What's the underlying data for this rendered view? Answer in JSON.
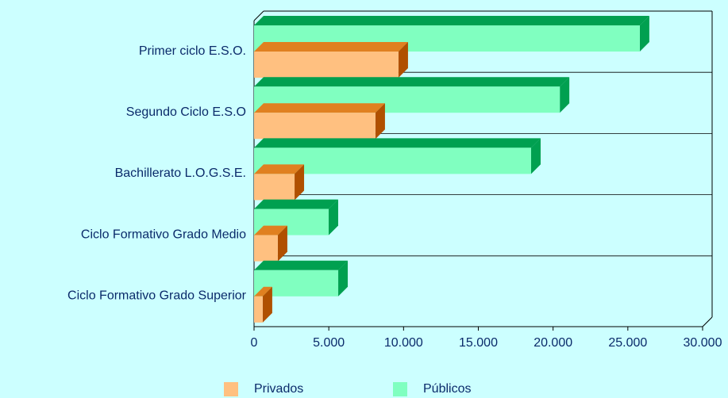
{
  "chart_data": {
    "type": "bar3d_horizontal",
    "categories": [
      "Primer ciclo E.S.O.",
      "Segundo Ciclo E.S.O",
      "Bachillerato L.O.G.S.E.",
      "Ciclo Formativo Grado Medio",
      "Ciclo Formativo Grado Superior"
    ],
    "series": [
      {
        "name": "Privados",
        "color": "#ffc080",
        "values": [
          9660,
          8120,
          2710,
          1590,
          580
        ]
      },
      {
        "name": "Públicos",
        "color": "#80ffc0",
        "values": [
          25800,
          20450,
          18530,
          4990,
          5630
        ]
      }
    ],
    "xlim": [
      0,
      30000
    ],
    "xticks": [
      0,
      {
        "value": 5000,
        "label": "5.000"
      },
      {
        "value": 10000,
        "label": "10.000"
      },
      {
        "value": 15000,
        "label": "15.000"
      },
      {
        "value": 20000,
        "label": "20.000"
      },
      {
        "value": 25000,
        "label": "25.000"
      },
      {
        "value": 30000,
        "label": "30.000"
      }
    ],
    "grid": true,
    "legend": "bottom"
  }
}
